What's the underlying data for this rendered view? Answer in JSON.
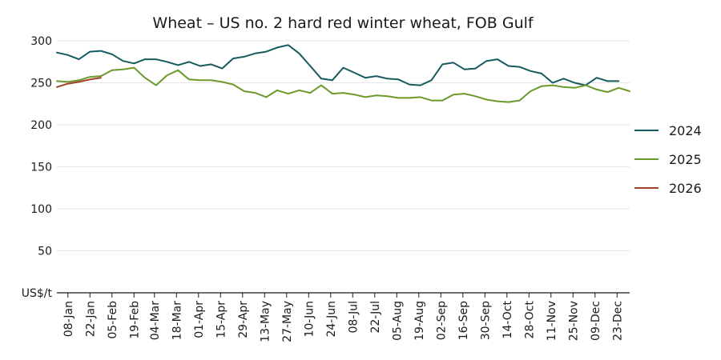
{
  "chart_data": {
    "type": "line",
    "title": "Wheat – US no. 2 hard red winter wheat, FOB Gulf",
    "ylabel": "US$/t",
    "ylim": [
      0,
      300
    ],
    "yticks": [
      50,
      100,
      150,
      200,
      250,
      300
    ],
    "xlim": [
      1,
      365
    ],
    "xtick_labels": [
      "08-Jan",
      "22-Jan",
      "05-Feb",
      "19-Feb",
      "04-Mar",
      "18-Mar",
      "01-Apr",
      "15-Apr",
      "29-Apr",
      "13-May",
      "27-May",
      "10-Jun",
      "24-Jun",
      "08-Jul",
      "22-Jul",
      "05-Aug",
      "19-Aug",
      "02-Sep",
      "16-Sep",
      "30-Sep",
      "14-Oct",
      "28-Oct",
      "11-Nov",
      "25-Nov",
      "09-Dec",
      "23-Dec"
    ],
    "xtick_days": [
      8,
      22,
      36,
      50,
      63,
      77,
      91,
      105,
      119,
      133,
      147,
      161,
      175,
      189,
      203,
      217,
      231,
      245,
      259,
      273,
      287,
      301,
      315,
      329,
      343,
      357
    ],
    "legend": "right",
    "grid": "horizontal",
    "series": [
      {
        "name": "2024",
        "color": "#155a5e",
        "x": [
          1,
          8,
          15,
          22,
          29,
          36,
          43,
          50,
          57,
          64,
          71,
          78,
          85,
          92,
          99,
          106,
          113,
          120,
          127,
          134,
          141,
          148,
          155,
          162,
          169,
          176,
          183,
          190,
          197,
          204,
          211,
          218,
          225,
          232,
          239,
          246,
          253,
          260,
          267,
          274,
          281,
          288,
          295,
          302,
          309,
          316,
          323,
          330,
          337,
          344,
          351,
          358
        ],
        "values": [
          286,
          283,
          278,
          287,
          288,
          284,
          276,
          273,
          278,
          278,
          275,
          271,
          275,
          270,
          272,
          267,
          279,
          281,
          285,
          287,
          292,
          295,
          285,
          270,
          255,
          253,
          268,
          262,
          256,
          258,
          255,
          254,
          248,
          247,
          253,
          272,
          274,
          266,
          267,
          276,
          278,
          270,
          269,
          264,
          261,
          250,
          255,
          250,
          247,
          256,
          252,
          252
        ]
      },
      {
        "name": "2025",
        "color": "#6b9a2a",
        "x": [
          1,
          8,
          15,
          22,
          29,
          36,
          43,
          50,
          57,
          64,
          71,
          78,
          85,
          92,
          99,
          106,
          113,
          120,
          127,
          134,
          141,
          148,
          155,
          162,
          169,
          176,
          183,
          190,
          197,
          204,
          211,
          218,
          225,
          232,
          239,
          246,
          253,
          260,
          267,
          274,
          281,
          288,
          295,
          302,
          309,
          316,
          323,
          330,
          337,
          344,
          351,
          358,
          365
        ],
        "values": [
          252,
          251,
          253,
          257,
          258,
          265,
          266,
          268,
          256,
          247,
          259,
          265,
          254,
          253,
          253,
          251,
          248,
          240,
          238,
          233,
          241,
          237,
          241,
          238,
          247,
          237,
          238,
          236,
          233,
          235,
          234,
          232,
          232,
          233,
          229,
          229,
          236,
          237,
          234,
          230,
          228,
          227,
          229,
          240,
          246,
          247,
          245,
          244,
          247,
          242,
          239,
          244,
          240
        ]
      },
      {
        "name": "2026",
        "color": "#a0422a",
        "x": [
          1,
          8,
          15,
          22,
          29
        ],
        "values": [
          245,
          249,
          251,
          254,
          256
        ]
      }
    ]
  }
}
